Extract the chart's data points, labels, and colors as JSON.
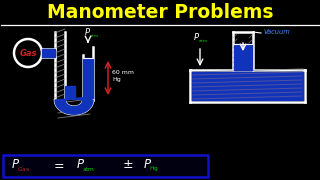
{
  "title": "Manometer Problems",
  "title_color": "#FFFF00",
  "bg_color": "#000000",
  "white": "#FFFFFF",
  "red": "#CC2222",
  "green": "#00CC00",
  "blue_label": "#4488FF",
  "hatch_color": "#999999",
  "liquid_color": "#1133BB",
  "formula_box_color": "#1111CC",
  "gas_label": "Gas",
  "vacuum_label": "Vacuum"
}
